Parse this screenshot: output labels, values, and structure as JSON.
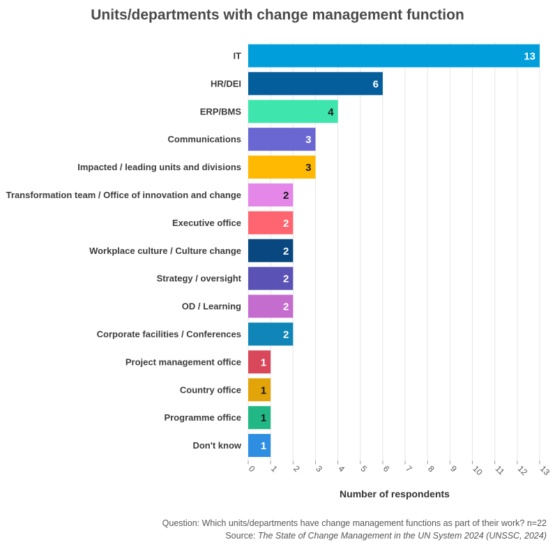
{
  "chart_data": {
    "type": "bar",
    "orientation": "horizontal",
    "title": "Units/departments with change management function",
    "xlabel": "Number of respondents",
    "ylabel": "",
    "xlim": [
      0,
      13
    ],
    "xticks": [
      "0",
      "1",
      "2",
      "3",
      "4",
      "5",
      "6",
      "7",
      "8",
      "9",
      "10",
      "11",
      "12",
      "13"
    ],
    "grid": true,
    "categories": [
      "IT",
      "HR/DEI",
      "ERP/BMS",
      "Communications",
      "Impacted / leading units and divisions",
      "Transformation team / Office of innovation and change",
      "Executive office",
      "Workplace culture / Culture change",
      "Strategy / oversight",
      "OD / Learning",
      "Corporate facilities / Conferences",
      "Project management office",
      "Country office",
      "Programme office",
      "Don't know"
    ],
    "values": [
      13,
      6,
      4,
      3,
      3,
      2,
      2,
      2,
      2,
      2,
      2,
      1,
      1,
      1,
      1
    ],
    "colors": [
      "#009edb",
      "#045e9c",
      "#3ee6ad",
      "#6a67d2",
      "#ffb902",
      "#e487e8",
      "#ff6571",
      "#08477f",
      "#5b52b6",
      "#c56dce",
      "#1085b8",
      "#d8475a",
      "#e3a40a",
      "#22b885",
      "#2d8ee2"
    ],
    "label_colors": [
      "#ffffff",
      "#ffffff",
      "#1a1a1a",
      "#ffffff",
      "#1a1a1a",
      "#1a1a1a",
      "#ffffff",
      "#ffffff",
      "#ffffff",
      "#ffffff",
      "#ffffff",
      "#ffffff",
      "#1a1a1a",
      "#1a1a1a",
      "#ffffff"
    ]
  },
  "footer": {
    "question": "Question: Which units/departments have change management functions as part of their work? n=22",
    "source_prefix": "Source: ",
    "source_title": "The State of Change Management in the UN System 2024 (UNSSC, 2024)"
  }
}
